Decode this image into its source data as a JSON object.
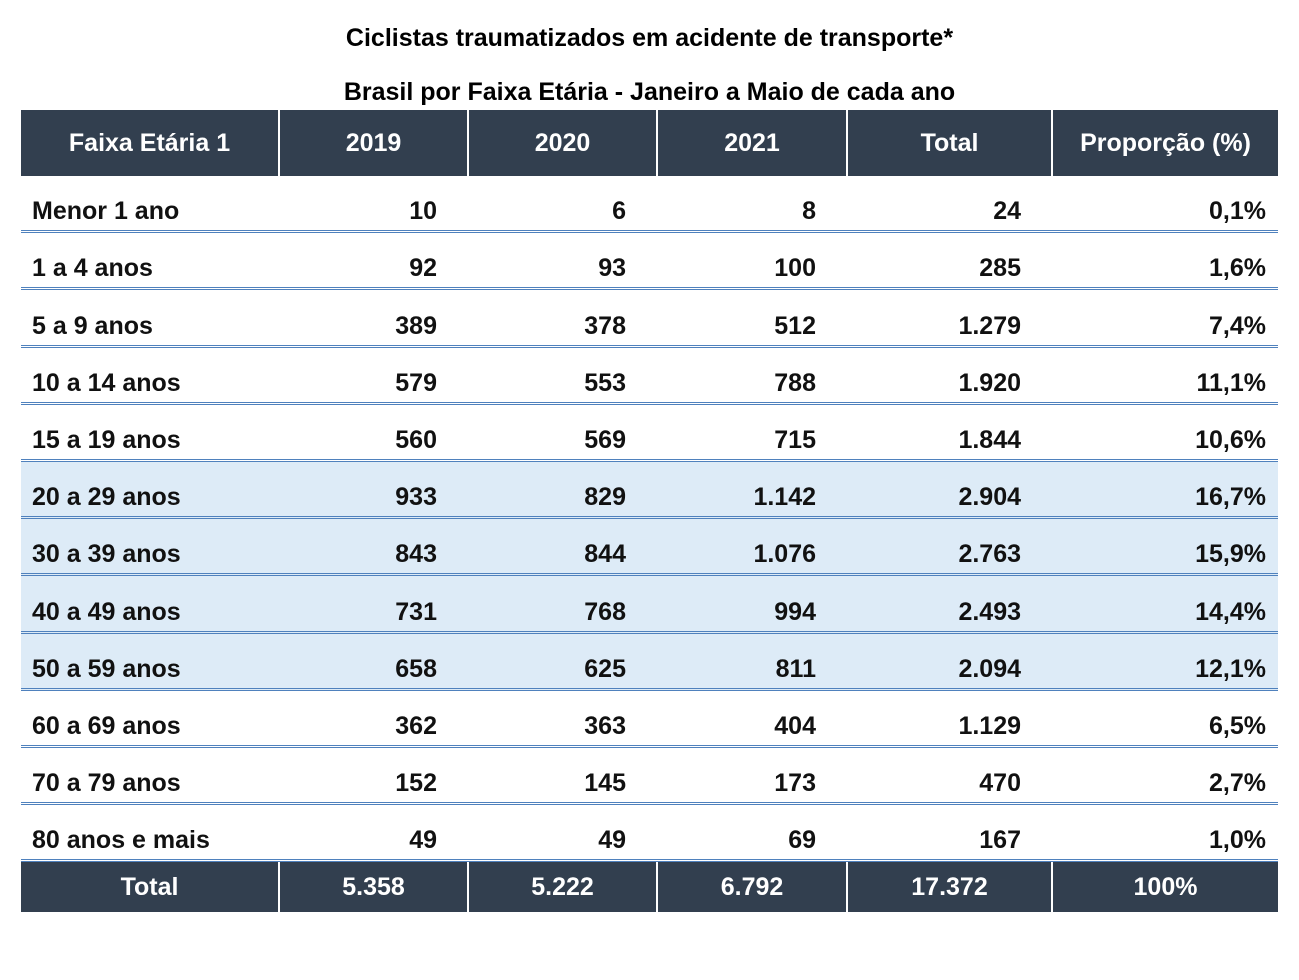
{
  "title": "Ciclistas traumatizados em acidente de transporte*",
  "subtitle": "Brasil por Faixa Etária - Janeiro a Maio de cada ano",
  "colors": {
    "header_bg": "#323f4f",
    "highlight_bg": "#ddebf7",
    "divider": "#4f81bd"
  },
  "headers": [
    "Faixa Etária 1",
    "2019",
    "2020",
    "2021",
    "Total",
    "Proporção (%)"
  ],
  "rows": [
    {
      "label": "Menor 1 ano",
      "v2019": "10",
      "v2020": "6",
      "v2021": "8",
      "total": "24",
      "prop": "0,1%"
    },
    {
      "label": "1 a 4 anos",
      "v2019": "92",
      "v2020": "93",
      "v2021": "100",
      "total": "285",
      "prop": "1,6%"
    },
    {
      "label": "5 a 9 anos",
      "v2019": "389",
      "v2020": "378",
      "v2021": "512",
      "total": "1.279",
      "prop": "7,4%"
    },
    {
      "label": "10 a 14 anos",
      "v2019": "579",
      "v2020": "553",
      "v2021": "788",
      "total": "1.920",
      "prop": "11,1%"
    },
    {
      "label": "15 a 19 anos",
      "v2019": "560",
      "v2020": "569",
      "v2021": "715",
      "total": "1.844",
      "prop": "10,6%"
    },
    {
      "label": "20 a 29 anos",
      "v2019": "933",
      "v2020": "829",
      "v2021": "1.142",
      "total": "2.904",
      "prop": "16,7%"
    },
    {
      "label": "30 a 39 anos",
      "v2019": "843",
      "v2020": "844",
      "v2021": "1.076",
      "total": "2.763",
      "prop": "15,9%"
    },
    {
      "label": "40 a 49 anos",
      "v2019": "731",
      "v2020": "768",
      "v2021": "994",
      "total": "2.493",
      "prop": "14,4%"
    },
    {
      "label": "50 a 59 anos",
      "v2019": "658",
      "v2020": "625",
      "v2021": "811",
      "total": "2.094",
      "prop": "12,1%"
    },
    {
      "label": "60 a 69 anos",
      "v2019": "362",
      "v2020": "363",
      "v2021": "404",
      "total": "1.129",
      "prop": "6,5%"
    },
    {
      "label": "70 a 79 anos",
      "v2019": "152",
      "v2020": "145",
      "v2021": "173",
      "total": "470",
      "prop": "2,7%"
    },
    {
      "label": "80 anos e mais",
      "v2019": "49",
      "v2020": "49",
      "v2021": "69",
      "total": "167",
      "prop": "1,0%"
    }
  ],
  "highlighted_rows": [
    "20 a 29 anos",
    "30 a 39 anos",
    "40 a 49 anos",
    "50 a 59 anos"
  ],
  "footer": {
    "label": "Total",
    "v2019": "5.358",
    "v2020": "5.222",
    "v2021": "6.792",
    "total": "17.372",
    "prop": "100%"
  },
  "chart_data": {
    "type": "table",
    "title": "Ciclistas traumatizados em acidente de transporte*",
    "subtitle": "Brasil por Faixa Etária - Janeiro a Maio de cada ano",
    "columns": [
      "Faixa Etária 1",
      "2019",
      "2020",
      "2021",
      "Total",
      "Proporção (%)"
    ],
    "categories": [
      "Menor 1 ano",
      "1 a 4 anos",
      "5 a 9 anos",
      "10 a 14 anos",
      "15 a 19 anos",
      "20 a 29 anos",
      "30 a 39 anos",
      "40 a 49 anos",
      "50 a 59 anos",
      "60 a 69 anos",
      "70 a 79 anos",
      "80 anos e mais"
    ],
    "series": [
      {
        "name": "2019",
        "values": [
          10,
          92,
          389,
          579,
          560,
          933,
          843,
          731,
          658,
          362,
          152,
          49
        ]
      },
      {
        "name": "2020",
        "values": [
          6,
          93,
          378,
          553,
          569,
          829,
          844,
          768,
          625,
          363,
          145,
          49
        ]
      },
      {
        "name": "2021",
        "values": [
          8,
          100,
          512,
          788,
          715,
          1142,
          1076,
          994,
          811,
          404,
          173,
          69
        ]
      },
      {
        "name": "Total",
        "values": [
          24,
          285,
          1279,
          1920,
          1844,
          2904,
          2763,
          2493,
          2094,
          1129,
          470,
          167
        ]
      },
      {
        "name": "Proporção (%)",
        "values": [
          0.1,
          1.6,
          7.4,
          11.1,
          10.6,
          16.7,
          15.9,
          14.4,
          12.1,
          6.5,
          2.7,
          1.0
        ]
      }
    ],
    "totals": {
      "2019": 5358,
      "2020": 5222,
      "2021": 6792,
      "Total": 17372,
      "Proporção (%)": 100
    }
  }
}
